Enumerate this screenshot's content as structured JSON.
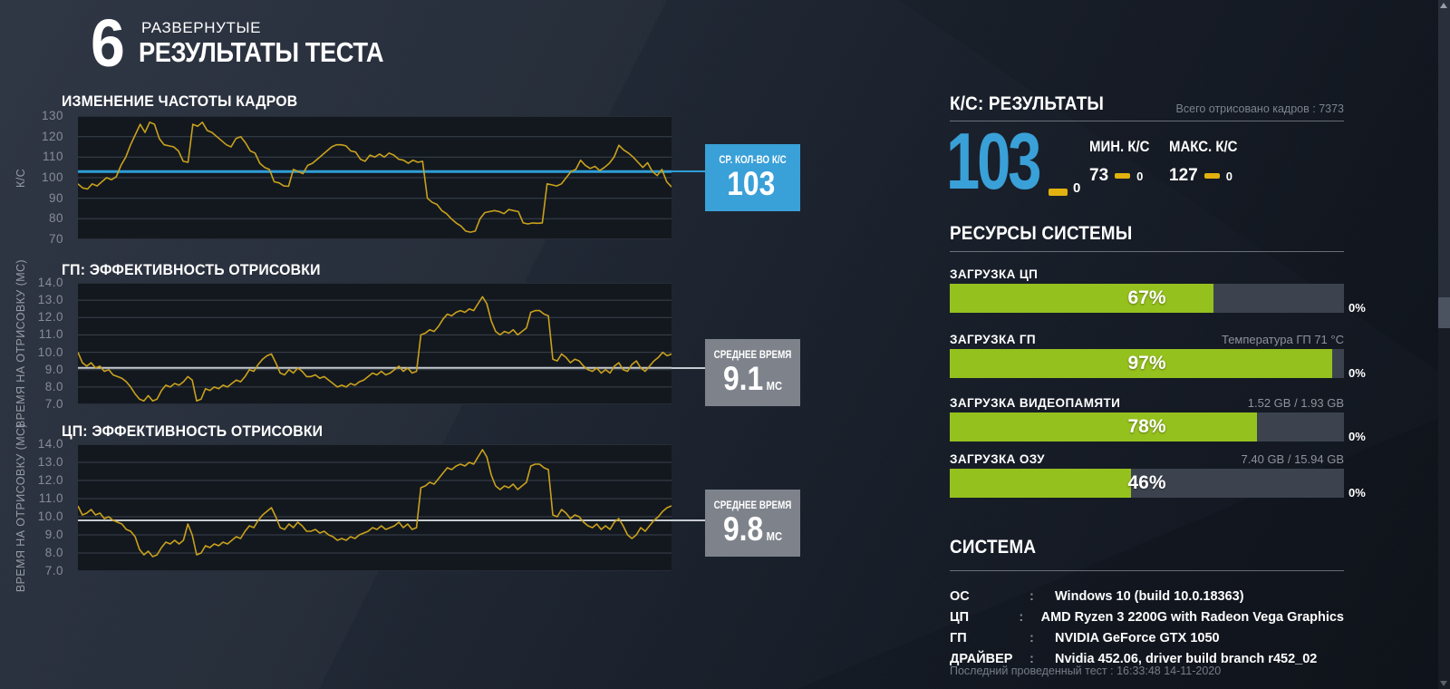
{
  "page_header": {
    "logo_glyph": "6",
    "kicker": "РАЗВЕРНУТЫЕ",
    "title": "РЕЗУЛЬТАТЫ ТЕСТА"
  },
  "chart_data": [
    {
      "type": "line",
      "title": "ИЗМЕНЕНИЕ ЧАСТОТЫ КАДРОВ",
      "xlabel": "",
      "ylabel": "К/С",
      "ylim": [
        70,
        130
      ],
      "yticks": [
        "130",
        "120",
        "110",
        "100",
        "90",
        "80",
        "70"
      ],
      "grid": "horizontal",
      "legend": null,
      "avg_value": 103,
      "avg_color": "#2f9ed8",
      "series_color": "#c9a11c",
      "values": [
        97,
        95,
        94.5,
        97,
        96,
        98,
        100,
        99,
        100.5,
        106,
        110,
        116,
        121,
        126,
        122,
        127,
        126,
        119,
        116,
        115.5,
        115,
        113,
        108,
        107.5,
        126,
        125,
        127,
        123,
        122,
        120,
        118,
        116,
        115,
        119,
        120,
        117,
        113,
        112,
        107,
        105,
        104,
        98,
        97.5,
        96,
        95.8,
        104,
        103,
        102,
        106,
        107,
        109,
        111,
        113,
        115,
        116,
        116,
        115.5,
        113,
        112.5,
        109,
        108,
        111,
        110,
        111.5,
        110,
        112,
        111,
        109,
        108.5,
        107,
        108.5,
        107.5,
        108,
        90,
        88,
        87,
        84,
        82.5,
        80,
        78,
        76.5,
        74,
        73.5,
        74,
        80,
        83,
        83.5,
        84,
        83.5,
        82.5,
        84.5,
        84,
        83.5,
        78,
        77.5,
        78,
        77.8,
        78,
        97,
        96.5,
        96,
        97,
        100,
        103,
        104,
        108.5,
        106,
        104.5,
        105.5,
        103.5,
        105,
        107,
        110,
        115.8,
        113.5,
        112,
        110,
        107.5,
        105,
        107.3,
        103,
        101,
        104,
        98,
        95.5
      ]
    },
    {
      "type": "line",
      "title": "ГП: ЭФФЕКТИВНОСТЬ ОТРИСОВКИ",
      "xlabel": "",
      "ylabel": "ВРЕМЯ НА ОТРИСОВКУ (МС)",
      "ylim": [
        7,
        14
      ],
      "yticks": [
        "14.0",
        "13.0",
        "12.0",
        "11.0",
        "10.0",
        "9.0",
        "8.0",
        "7.0"
      ],
      "grid": "horizontal",
      "legend": null,
      "avg_value": 9.1,
      "avg_color": "#c6cbd1",
      "series_color": "#c9a11c",
      "values": [
        10.0,
        9.4,
        9.2,
        9.4,
        9.1,
        9.2,
        8.9,
        9.0,
        8.7,
        8.6,
        8.5,
        8.3,
        8.0,
        7.6,
        7.3,
        7.2,
        7.5,
        7.2,
        7.3,
        7.8,
        8.1,
        8.0,
        8.2,
        8.1,
        8.3,
        8.6,
        8.4,
        7.2,
        7.3,
        7.9,
        7.8,
        8.0,
        7.9,
        8.1,
        8.0,
        8.2,
        8.4,
        8.3,
        8.6,
        9.0,
        8.9,
        9.3,
        9.6,
        9.8,
        9.9,
        9.4,
        8.8,
        8.7,
        9.0,
        8.8,
        9.1,
        8.9,
        8.6,
        8.6,
        8.7,
        8.5,
        8.6,
        8.4,
        8.2,
        8.0,
        8.1,
        8.0,
        8.2,
        8.1,
        8.3,
        8.4,
        8.6,
        8.8,
        8.7,
        8.9,
        8.7,
        8.8,
        9.0,
        9.2,
        8.9,
        9.1,
        8.8,
        8.9,
        11.0,
        11.1,
        11.3,
        11.2,
        11.5,
        11.9,
        12.2,
        12.1,
        12.3,
        12.4,
        12.3,
        12.5,
        12.4,
        12.8,
        13.2,
        12.8,
        11.8,
        11.2,
        11.0,
        11.2,
        11.1,
        11.3,
        11.0,
        11.2,
        11.4,
        12.3,
        12.4,
        12.4,
        12.2,
        12.1,
        9.6,
        9.5,
        9.9,
        9.7,
        9.4,
        9.6,
        9.5,
        9.2,
        9.0,
        8.9,
        9.1,
        8.8,
        9.0,
        8.8,
        9.2,
        9.4,
        9.0,
        8.9,
        9.3,
        9.5,
        9.1,
        8.9,
        9.2,
        9.5,
        9.7,
        10.0,
        9.8,
        9.9
      ]
    },
    {
      "type": "line",
      "title": "ЦП: ЭФФЕКТИВНОСТЬ ОТРИСОВКИ",
      "xlabel": "",
      "ylabel": "ВРЕМЯ НА ОТРИСОВКУ (МС)",
      "ylim": [
        7,
        14
      ],
      "yticks": [
        "14.0",
        "13.0",
        "12.0",
        "11.0",
        "10.0",
        "9.0",
        "8.0",
        "7.0"
      ],
      "grid": "horizontal",
      "legend": null,
      "avg_value": 9.8,
      "avg_color": "#c6cbd1",
      "series_color": "#c9a11c",
      "values": [
        10.6,
        10.1,
        10.2,
        10.4,
        10.1,
        10.2,
        9.9,
        10.0,
        9.8,
        9.7,
        9.6,
        9.3,
        9.2,
        8.9,
        8.2,
        7.9,
        8.1,
        7.8,
        7.9,
        8.3,
        8.6,
        8.5,
        8.7,
        8.5,
        8.7,
        9.6,
        9.0,
        7.9,
        8.0,
        8.4,
        8.3,
        8.5,
        8.4,
        8.6,
        8.5,
        8.7,
        8.9,
        8.8,
        9.2,
        9.5,
        9.4,
        9.8,
        10.1,
        10.3,
        10.5,
        10.0,
        9.4,
        9.3,
        9.6,
        9.4,
        9.7,
        9.5,
        9.2,
        9.2,
        9.3,
        9.1,
        9.2,
        9.0,
        8.9,
        8.7,
        8.8,
        8.7,
        8.9,
        8.8,
        9.0,
        9.1,
        9.2,
        9.4,
        9.3,
        9.5,
        9.3,
        9.4,
        9.5,
        9.7,
        9.4,
        9.6,
        9.3,
        9.4,
        11.6,
        11.7,
        11.9,
        11.8,
        12.1,
        12.4,
        12.7,
        12.6,
        12.8,
        12.9,
        12.8,
        13.0,
        12.9,
        13.3,
        13.7,
        13.3,
        12.3,
        11.7,
        11.5,
        11.7,
        11.6,
        11.8,
        11.5,
        11.7,
        11.9,
        12.8,
        12.9,
        12.9,
        12.7,
        12.6,
        10.1,
        10.0,
        10.4,
        10.2,
        9.9,
        10.1,
        10.0,
        9.7,
        9.5,
        9.4,
        9.6,
        9.3,
        9.5,
        9.3,
        9.7,
        9.9,
        9.5,
        9.0,
        8.8,
        9.0,
        9.4,
        9.2,
        9.5,
        9.8,
        10.0,
        10.3,
        10.5,
        10.6
      ]
    }
  ],
  "avg_badges": [
    {
      "label": "СР. КОЛ-ВО К/С",
      "value": "103",
      "unit": ""
    },
    {
      "label": "СРЕДНЕЕ ВРЕМЯ",
      "value": "9.1",
      "unit": "МС"
    },
    {
      "label": "СРЕДНЕЕ ВРЕМЯ",
      "value": "9.8",
      "unit": "МС"
    }
  ],
  "results": {
    "section_title": "К/С: РЕЗУЛЬТАТЫ",
    "total_frames_label": "Всего отрисовано кадров : 7373",
    "avg_fps": "103",
    "avg_low_count": "0",
    "min": {
      "label": "МИН. К/С",
      "value": "73",
      "low_count": "0"
    },
    "max": {
      "label": "МАКС. К/С",
      "value": "127",
      "low_count": "0"
    }
  },
  "resources": {
    "section_title": "РЕСУРСЫ СИСТЕМЫ",
    "bars": [
      {
        "label": "ЗАГРУЗКА ЦП",
        "percent": 67,
        "percent_label": "67%",
        "right_info": "",
        "scale_label": "0%"
      },
      {
        "label": "ЗАГРУЗКА ГП",
        "percent": 97,
        "percent_label": "97%",
        "right_info": "Температура ГП 71 °C",
        "scale_label": "0%"
      },
      {
        "label": "ЗАГРУЗКА ВИДЕОПАМЯТИ",
        "percent": 78,
        "percent_label": "78%",
        "right_info": "1.52 GB / 1.93 GB",
        "scale_label": "0%"
      },
      {
        "label": "ЗАГРУЗКА ОЗУ",
        "percent": 46,
        "percent_label": "46%",
        "right_info": "7.40 GB / 15.94 GB",
        "scale_label": "0%"
      }
    ]
  },
  "system": {
    "section_title": "СИСТЕМА",
    "rows": [
      {
        "label": "ОС",
        "separator": ":",
        "value": "Windows 10 (build 10.0.18363)"
      },
      {
        "label": "ЦП",
        "separator": ":",
        "value": "AMD Ryzen 3 2200G with Radeon Vega Graphics"
      },
      {
        "label": "ГП",
        "separator": ":",
        "value": "NVIDIA GeForce GTX 1050"
      },
      {
        "label": "ДРАЙВЕР",
        "separator": ":",
        "value": "Nvidia 452.06, driver build branch r452_02"
      }
    ],
    "footer": "Последний проведенный тест : 16:33:48 14-11-2020"
  },
  "colors": {
    "accent_blue": "#3aa0d8",
    "accent_yellow": "#e2b10f",
    "accent_green": "#95c11e",
    "badge_gray": "#7e838b",
    "line_gold": "#c9a11c"
  }
}
